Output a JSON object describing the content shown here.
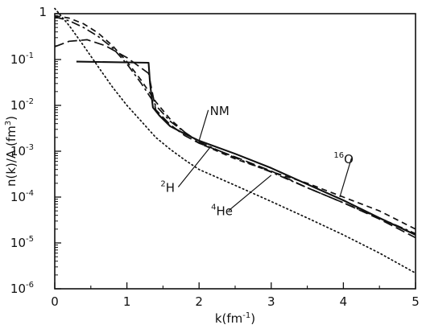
{
  "chart_data": {
    "type": "line",
    "title": "",
    "xlabel": "k(fm",
    "xlabel_sup": "-1",
    "xlabel_end": ")",
    "ylabel": "n(k)/A (fm",
    "ylabel_sup": "3",
    "ylabel_end": ")",
    "xlim": [
      0,
      5
    ],
    "ylim_log10": [
      -6,
      0
    ],
    "yscale": "log",
    "grid": false,
    "x_ticks": [
      {
        "value": 0,
        "label": "0"
      },
      {
        "value": 1,
        "label": "1"
      },
      {
        "value": 2,
        "label": "2"
      },
      {
        "value": 3,
        "label": "3"
      },
      {
        "value": 4,
        "label": "4"
      },
      {
        "value": 5,
        "label": "5"
      }
    ],
    "y_ticks": [
      {
        "exp": 0,
        "base": "1",
        "sup": ""
      },
      {
        "exp": -1,
        "base": "10",
        "sup": "-1"
      },
      {
        "exp": -2,
        "base": "10",
        "sup": "-2"
      },
      {
        "exp": -3,
        "base": "10",
        "sup": "-3"
      },
      {
        "exp": -4,
        "base": "10",
        "sup": "-4"
      },
      {
        "exp": -5,
        "base": "10",
        "sup": "-5"
      },
      {
        "exp": -6,
        "base": "10",
        "sup": "-6"
      }
    ],
    "series": [
      {
        "name": "NM",
        "style": "solid",
        "x": [
          0.3,
          1.3,
          1.32,
          1.36,
          1.45,
          1.6,
          1.8,
          2.0,
          2.5,
          3.0,
          3.5,
          4.0,
          4.5,
          5.0
        ],
        "y": [
          0.09,
          0.085,
          0.03,
          0.009,
          0.006,
          0.0035,
          0.0024,
          0.0017,
          0.00088,
          0.00043,
          0.00019,
          8.5e-05,
          3.5e-05,
          1.5e-05
        ]
      },
      {
        "name": "4He",
        "style": "long-dash",
        "x": [
          0.0,
          0.2,
          0.45,
          0.7,
          1.0,
          1.3,
          1.4,
          1.6,
          1.8,
          2.0,
          2.5,
          3.0,
          3.5,
          4.0,
          4.5,
          5.0
        ],
        "y": [
          0.19,
          0.25,
          0.27,
          0.2,
          0.11,
          0.05,
          0.008,
          0.0038,
          0.0022,
          0.0015,
          0.00075,
          0.00037,
          0.00016,
          7.5e-05,
          3.3e-05,
          1.3e-05
        ]
      },
      {
        "name": "2H",
        "style": "dash-dot",
        "x": [
          0.0,
          0.2,
          0.4,
          0.6,
          0.8,
          1.0,
          1.2,
          1.4,
          1.6,
          1.8,
          2.0,
          2.5,
          3.0,
          3.5,
          4.0,
          4.5,
          5.0
        ],
        "y": [
          0.85,
          0.7,
          0.5,
          0.32,
          0.18,
          0.08,
          0.03,
          0.01,
          0.0045,
          0.0026,
          0.0016,
          0.00072,
          0.00035,
          0.00016,
          7.5e-05,
          3.5e-05,
          1.6e-05
        ]
      },
      {
        "name": "16O",
        "style": "dashed",
        "x": [
          0.0,
          0.2,
          0.4,
          0.6,
          0.8,
          1.0,
          1.2,
          1.4,
          1.6,
          1.8,
          2.0,
          2.5,
          3.0,
          3.5,
          4.0,
          4.5,
          5.0
        ],
        "y": [
          0.9,
          0.8,
          0.6,
          0.38,
          0.2,
          0.09,
          0.035,
          0.012,
          0.005,
          0.0026,
          0.0015,
          0.00068,
          0.00036,
          0.0002,
          0.0001,
          5e-05,
          2e-05
        ]
      },
      {
        "name": "",
        "style": "dotted",
        "x": [
          0.0,
          0.2,
          0.4,
          0.6,
          0.8,
          1.0,
          1.2,
          1.4,
          1.6,
          1.8,
          2.0,
          2.5,
          3.0,
          3.5,
          4.0,
          4.5,
          5.0
        ],
        "y": [
          1.3,
          0.55,
          0.2,
          0.07,
          0.025,
          0.01,
          0.0045,
          0.002,
          0.0011,
          0.00065,
          0.0004,
          0.00018,
          8e-05,
          3.5e-05,
          1.5e-05,
          6e-06,
          2.2e-06
        ]
      }
    ],
    "annotations": [
      {
        "base": "NM",
        "sup": "",
        "pre": false,
        "x": 2.15,
        "y": 0.0062,
        "target_x": 2.0,
        "target_y": 0.0017
      },
      {
        "base": "O",
        "sup": "16",
        "pre": true,
        "x": 4.0,
        "y": 0.00055,
        "target_x": 3.95,
        "target_y": 0.0001
      },
      {
        "base": "H",
        "sup": "2",
        "pre": true,
        "x": 1.6,
        "y": 0.00013,
        "target_x": 2.15,
        "target_y": 0.0012
      },
      {
        "base": "He",
        "sup": "4",
        "pre": true,
        "x": 2.3,
        "y": 4e-05,
        "target_x": 3.0,
        "target_y": 0.0003
      }
    ]
  }
}
